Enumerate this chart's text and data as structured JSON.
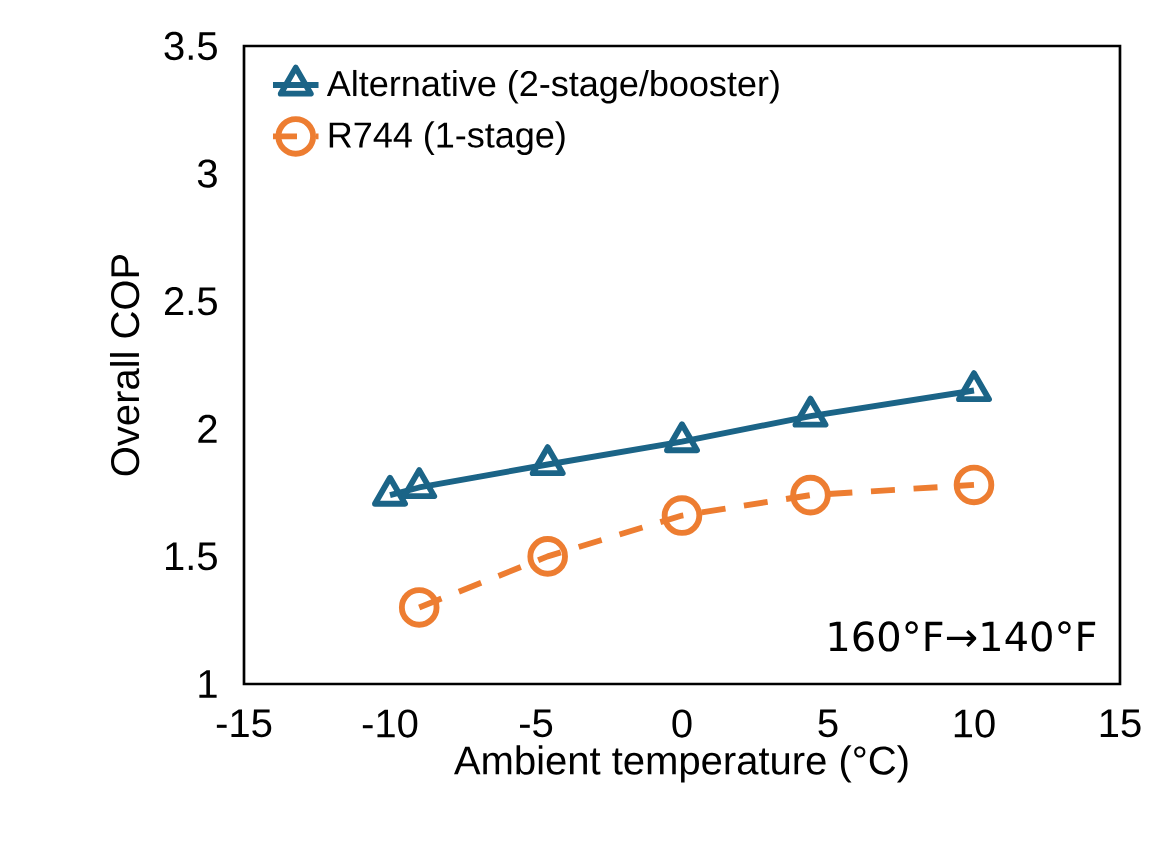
{
  "chart_data": {
    "type": "line",
    "xlabel": "Ambient temperature (°C)",
    "ylabel": "Overall COP",
    "xlim": [
      -15,
      15
    ],
    "xticks": [
      {
        "value": -15,
        "label": "-15"
      },
      {
        "value": -10,
        "label": "-10"
      },
      {
        "value": -5,
        "label": "-5"
      },
      0,
      5,
      10,
      15
    ],
    "ylim": [
      1,
      3.5
    ],
    "yticks": [
      1,
      1.5,
      2,
      2.5,
      3,
      3.5
    ],
    "grid": false,
    "legend": "top left",
    "series": [
      {
        "name": "Alternative (2-stage/booster)",
        "color": "#1b6487",
        "marker": "triangle",
        "line_style": "solid",
        "x": [
          -10,
          -9,
          -4.6,
          0,
          4.4,
          10
        ],
        "values": [
          1.74,
          1.77,
          1.86,
          1.95,
          2.05,
          2.15
        ]
      },
      {
        "name": "R744 (1-stage)",
        "color": "#ed7d31",
        "marker": "circle",
        "line_style": "dashed",
        "x": [
          -9,
          -4.6,
          0,
          4.4,
          10
        ],
        "values": [
          1.3,
          1.5,
          1.66,
          1.74,
          1.78
        ]
      }
    ],
    "annotations": [
      "160°F→140°F"
    ]
  }
}
